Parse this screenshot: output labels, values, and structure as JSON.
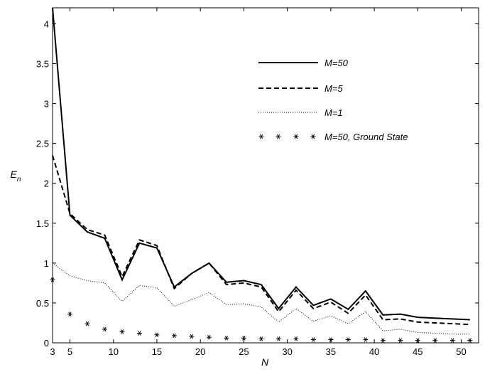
{
  "chart_data": {
    "type": "line",
    "xlabel": "N",
    "ylabel_main": "E",
    "ylabel_sub": "n",
    "xlim": [
      3,
      52
    ],
    "ylim": [
      0,
      4.2
    ],
    "xticks": [
      3,
      5,
      10,
      15,
      20,
      25,
      30,
      35,
      40,
      45,
      50
    ],
    "yticks": [
      0,
      0.5,
      1,
      1.5,
      2,
      2.5,
      3,
      3.5,
      4
    ],
    "legend_position": "top-right",
    "x": [
      3,
      5,
      7,
      9,
      11,
      13,
      15,
      17,
      19,
      21,
      23,
      25,
      27,
      29,
      31,
      33,
      35,
      37,
      39,
      41,
      43,
      45,
      47,
      49,
      51
    ],
    "series": [
      {
        "name": "M=50",
        "style": "solid",
        "color": "#000000",
        "values": [
          4.2,
          1.6,
          1.39,
          1.31,
          0.79,
          1.25,
          1.19,
          0.7,
          0.87,
          1.0,
          0.76,
          0.78,
          0.73,
          0.43,
          0.7,
          0.47,
          0.55,
          0.42,
          0.65,
          0.35,
          0.36,
          0.32,
          0.31,
          0.3,
          0.29
        ]
      },
      {
        "name": "M=5",
        "style": "dashed",
        "color": "#000000",
        "values": [
          2.35,
          1.62,
          1.42,
          1.35,
          0.83,
          1.29,
          1.22,
          0.68,
          0.87,
          1.0,
          0.73,
          0.75,
          0.7,
          0.39,
          0.66,
          0.43,
          0.51,
          0.37,
          0.6,
          0.29,
          0.3,
          0.26,
          0.25,
          0.24,
          0.23
        ]
      },
      {
        "name": "M=1",
        "style": "dotted",
        "color": "#000000",
        "values": [
          1.0,
          0.84,
          0.78,
          0.75,
          0.52,
          0.72,
          0.69,
          0.46,
          0.54,
          0.63,
          0.48,
          0.49,
          0.45,
          0.26,
          0.43,
          0.27,
          0.34,
          0.24,
          0.39,
          0.15,
          0.17,
          0.13,
          0.12,
          0.11,
          0.11
        ]
      },
      {
        "name": "M=50, Ground State",
        "style": "markers",
        "color": "#000000",
        "values": [
          0.79,
          0.36,
          0.24,
          0.17,
          0.14,
          0.12,
          0.1,
          0.09,
          0.08,
          0.07,
          0.06,
          0.06,
          0.05,
          0.05,
          0.05,
          0.04,
          0.04,
          0.04,
          0.04,
          0.03,
          0.03,
          0.03,
          0.03,
          0.03,
          0.03
        ]
      }
    ]
  }
}
